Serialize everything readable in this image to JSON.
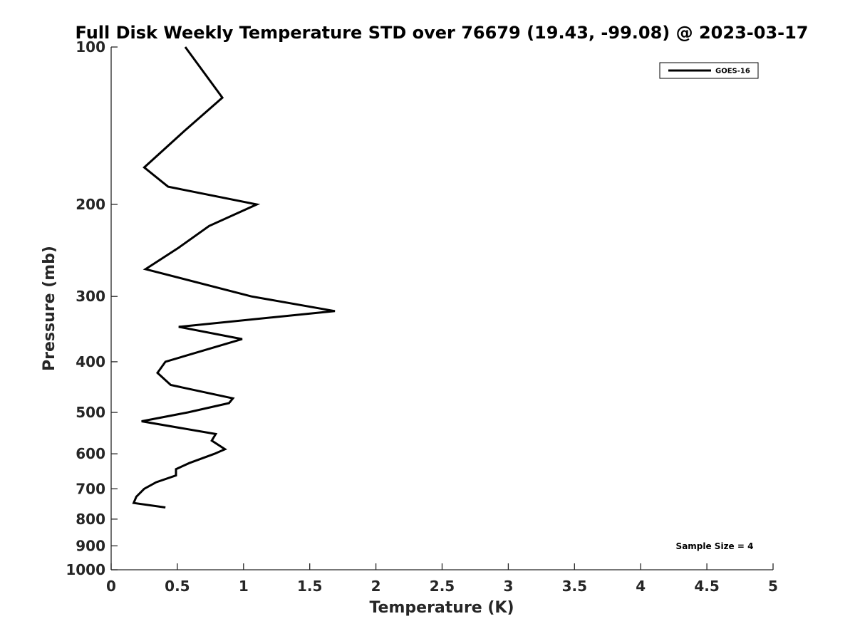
{
  "chart_data": {
    "type": "line",
    "title": "Full Disk Weekly Temperature STD over 76679 (19.43, -99.08) @ 2023-03-17",
    "xlabel": "Temperature (K)",
    "ylabel": "Pressure (mb)",
    "xlim": [
      0,
      5
    ],
    "ylim": [
      100,
      1000
    ],
    "y_scale": "log",
    "y_reversed": true,
    "grid": false,
    "legend_placement": "top-right",
    "x_ticks": [
      0,
      0.5,
      1,
      1.5,
      2,
      2.5,
      3,
      3.5,
      4,
      4.5,
      5
    ],
    "x_tick_labels": [
      "0",
      "0.5",
      "1",
      "1.5",
      "2",
      "2.5",
      "3",
      "3.5",
      "4",
      "4.5",
      "5"
    ],
    "y_ticks": [
      100,
      200,
      300,
      400,
      500,
      600,
      700,
      800,
      900,
      1000
    ],
    "y_tick_labels": [
      "100",
      "200",
      "300",
      "400",
      "500",
      "600",
      "700",
      "800",
      "900",
      "1000"
    ],
    "series": [
      {
        "name": "GOES-16",
        "color": "#000000",
        "points": [
          {
            "t": 0.56,
            "p": 100
          },
          {
            "t": 0.84,
            "p": 125
          },
          {
            "t": 0.55,
            "p": 145
          },
          {
            "t": 0.25,
            "p": 170
          },
          {
            "t": 0.43,
            "p": 185
          },
          {
            "t": 1.1,
            "p": 200
          },
          {
            "t": 0.74,
            "p": 220
          },
          {
            "t": 0.51,
            "p": 242
          },
          {
            "t": 0.26,
            "p": 266
          },
          {
            "t": 1.06,
            "p": 300
          },
          {
            "t": 1.69,
            "p": 320
          },
          {
            "t": 0.51,
            "p": 343
          },
          {
            "t": 0.99,
            "p": 362
          },
          {
            "t": 0.41,
            "p": 400
          },
          {
            "t": 0.35,
            "p": 420
          },
          {
            "t": 0.45,
            "p": 443
          },
          {
            "t": 0.92,
            "p": 470
          },
          {
            "t": 0.89,
            "p": 480
          },
          {
            "t": 0.58,
            "p": 500
          },
          {
            "t": 0.23,
            "p": 520
          },
          {
            "t": 0.79,
            "p": 550
          },
          {
            "t": 0.76,
            "p": 566
          },
          {
            "t": 0.86,
            "p": 588
          },
          {
            "t": 0.78,
            "p": 600
          },
          {
            "t": 0.59,
            "p": 625
          },
          {
            "t": 0.49,
            "p": 642
          },
          {
            "t": 0.49,
            "p": 660
          },
          {
            "t": 0.34,
            "p": 680
          },
          {
            "t": 0.25,
            "p": 700
          },
          {
            "t": 0.19,
            "p": 725
          },
          {
            "t": 0.17,
            "p": 745
          },
          {
            "t": 0.41,
            "p": 760
          }
        ]
      }
    ],
    "annotations": [
      {
        "text": "Sample Size = 4",
        "placement": "bottom-right"
      }
    ]
  }
}
